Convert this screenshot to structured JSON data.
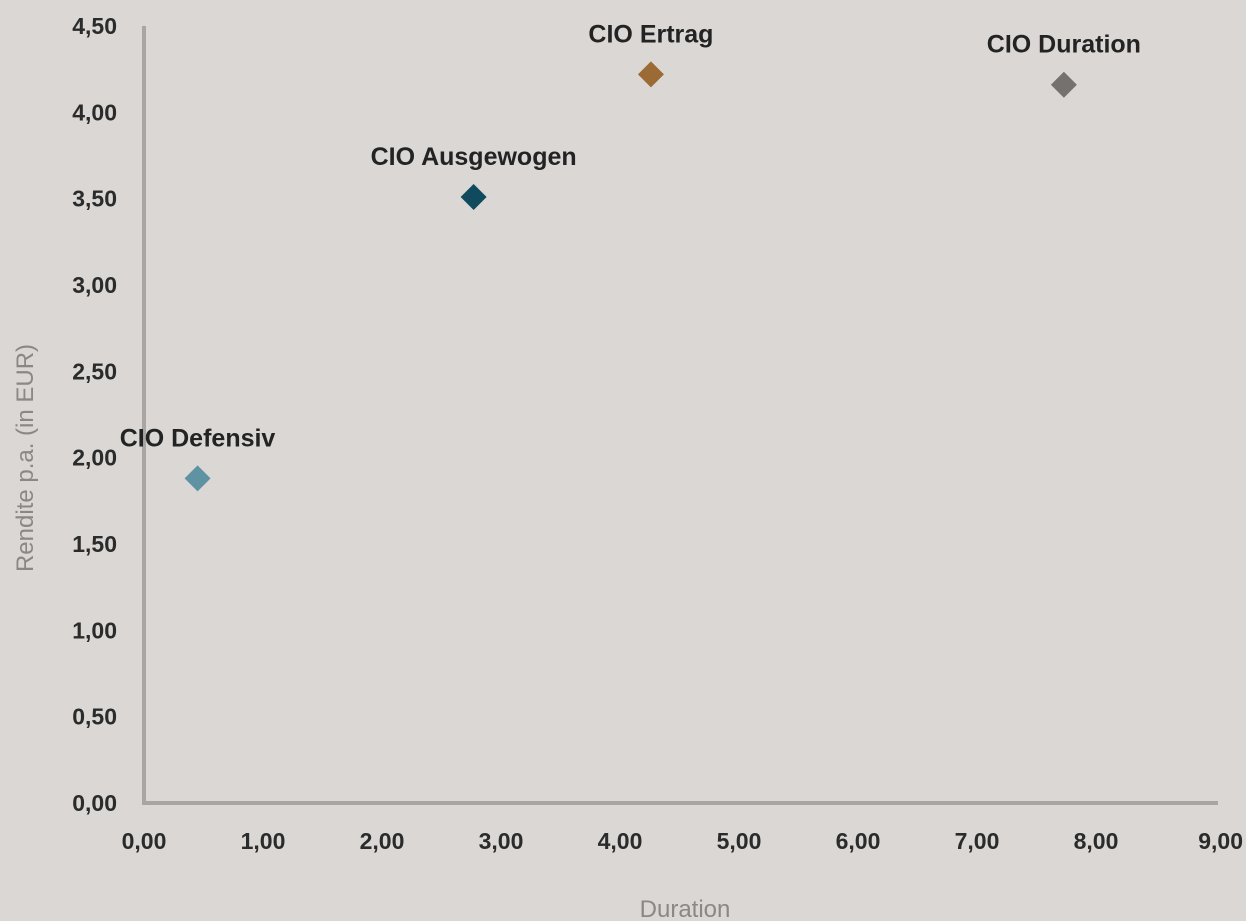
{
  "chart_data": {
    "type": "scatter",
    "xlabel": "Duration",
    "ylabel": "Rendite p.a. (in EUR)",
    "xlim": [
      0,
      9
    ],
    "ylim": [
      0,
      4.5
    ],
    "x_ticks": [
      "0,00",
      "1,00",
      "2,00",
      "3,00",
      "4,00",
      "5,00",
      "6,00",
      "7,00",
      "8,00",
      "9,00"
    ],
    "y_ticks": [
      "0,00",
      "0,50",
      "1,00",
      "1,50",
      "2,00",
      "2,50",
      "3,00",
      "3,50",
      "4,00",
      "4,50"
    ],
    "grid": false,
    "legend": "none",
    "marker": "diamond",
    "axis_color": "#a8a5a2",
    "points": [
      {
        "label": "CIO Defensiv",
        "x": 0.45,
        "y": 1.88,
        "color": "#5f93a3"
      },
      {
        "label": "CIO Ausgewogen",
        "x": 2.77,
        "y": 3.51,
        "color": "#0f4a5e"
      },
      {
        "label": "CIO Ertrag",
        "x": 4.26,
        "y": 4.22,
        "color": "#9c6a35"
      },
      {
        "label": "CIO Duration",
        "x": 7.73,
        "y": 4.16,
        "color": "#74716e"
      }
    ]
  }
}
